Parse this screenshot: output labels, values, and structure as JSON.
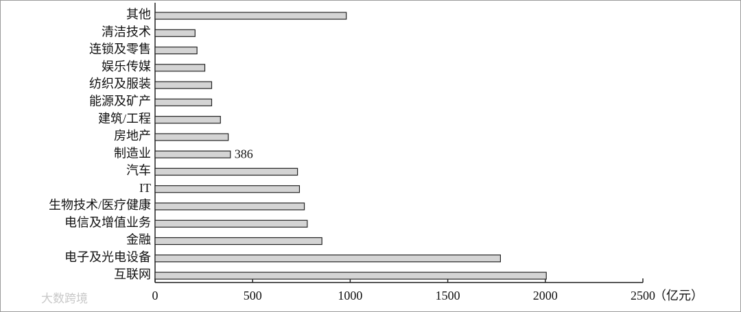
{
  "chart_data": {
    "type": "bar",
    "orientation": "horizontal",
    "categories": [
      "其他",
      "清洁技术",
      "连锁及零售",
      "娱乐传媒",
      "纺织及服装",
      "能源及矿产",
      "建筑/工程",
      "房地产",
      "制造业",
      "汽车",
      "IT",
      "生物技术/医疗健康",
      "电信及增值业务",
      "金融",
      "电子及光电设备",
      "互联网"
    ],
    "values": [
      980,
      205,
      215,
      255,
      290,
      290,
      335,
      375,
      386,
      730,
      740,
      765,
      780,
      855,
      1770,
      2005
    ],
    "value_labels": [
      null,
      null,
      null,
      null,
      null,
      null,
      null,
      null,
      "386",
      null,
      null,
      null,
      null,
      null,
      null,
      null
    ],
    "color": "#d4d4d4",
    "xlim": [
      0,
      2500
    ],
    "xticks": [
      0,
      500,
      1000,
      1500,
      2000,
      2500
    ],
    "x_axis_label": "（亿元）",
    "watermark": "大数跨境"
  }
}
